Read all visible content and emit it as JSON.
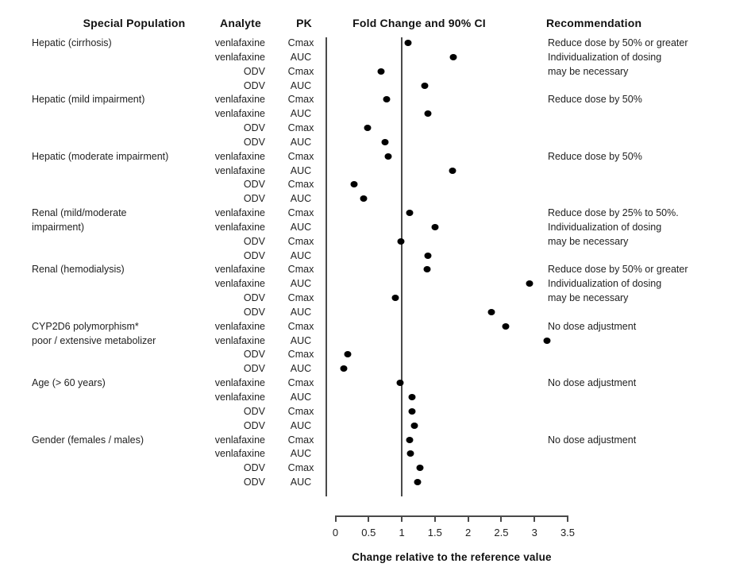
{
  "chart_data": {
    "type": "scatter",
    "subtype": "forest-dot-plot",
    "headers": [
      "Special Population",
      "Analyte",
      "PK",
      "Fold Change and 90% CI",
      "Recommendation"
    ],
    "xlabel": "Change relative to the reference value",
    "xlim": [
      0,
      3.5
    ],
    "x_ticks": [
      "0",
      "0.5",
      "1",
      "1.5",
      "2",
      "2.5",
      "3",
      "3.5"
    ],
    "x_tick_values": [
      0,
      0.5,
      1,
      1.5,
      2,
      2.5,
      3,
      3.5
    ],
    "reference_line_x": 1,
    "grid": false,
    "marker_color": "#000000",
    "line_color": "#4a4a4a",
    "rows": [
      {
        "population": "Hepatic (cirrhosis)",
        "analyte": "venlafaxine",
        "pk": "Cmax",
        "fold_change": 1.09,
        "recommendation": "Reduce dose by 50% or greater"
      },
      {
        "population": "",
        "analyte": "venlafaxine",
        "pk": "AUC",
        "fold_change": 1.78,
        "recommendation": "Individualization of dosing"
      },
      {
        "population": "",
        "analyte": "ODV",
        "pk": "Cmax",
        "fold_change": 0.69,
        "recommendation": "may be necessary"
      },
      {
        "population": "",
        "analyte": "ODV",
        "pk": "AUC",
        "fold_change": 1.35,
        "recommendation": ""
      },
      {
        "population": "Hepatic (mild impairment)",
        "analyte": "venlafaxine",
        "pk": "Cmax",
        "fold_change": 0.77,
        "recommendation": "Reduce dose by 50%"
      },
      {
        "population": "",
        "analyte": "venlafaxine",
        "pk": "AUC",
        "fold_change": 1.39,
        "recommendation": ""
      },
      {
        "population": "",
        "analyte": "ODV",
        "pk": "Cmax",
        "fold_change": 0.49,
        "recommendation": ""
      },
      {
        "population": "",
        "analyte": "ODV",
        "pk": "AUC",
        "fold_change": 0.75,
        "recommendation": ""
      },
      {
        "population": "Hepatic (moderate impairment)",
        "analyte": "venlafaxine",
        "pk": "Cmax",
        "fold_change": 0.79,
        "recommendation": "Reduce dose by 50%"
      },
      {
        "population": "",
        "analyte": "venlafaxine",
        "pk": "AUC",
        "fold_change": 1.76,
        "recommendation": ""
      },
      {
        "population": "",
        "analyte": "ODV",
        "pk": "Cmax",
        "fold_change": 0.28,
        "recommendation": ""
      },
      {
        "population": "",
        "analyte": "ODV",
        "pk": "AUC",
        "fold_change": 0.42,
        "recommendation": ""
      },
      {
        "population": "Renal (mild/moderate",
        "analyte": "venlafaxine",
        "pk": "Cmax",
        "fold_change": 1.12,
        "recommendation": "Reduce dose by 25% to 50%."
      },
      {
        "population": "impairment)",
        "analyte": "venlafaxine",
        "pk": "AUC",
        "fold_change": 1.5,
        "recommendation": "Individualization of dosing"
      },
      {
        "population": "",
        "analyte": "ODV",
        "pk": "Cmax",
        "fold_change": 0.99,
        "recommendation": "may be necessary"
      },
      {
        "population": "",
        "analyte": "ODV",
        "pk": "AUC",
        "fold_change": 1.39,
        "recommendation": ""
      },
      {
        "population": "Renal (hemodialysis)",
        "analyte": "venlafaxine",
        "pk": "Cmax",
        "fold_change": 1.38,
        "recommendation": "Reduce dose by 50% or greater"
      },
      {
        "population": "",
        "analyte": "venlafaxine",
        "pk": "AUC",
        "fold_change": 2.92,
        "recommendation": "Individualization of dosing"
      },
      {
        "population": "",
        "analyte": "ODV",
        "pk": "Cmax",
        "fold_change": 0.9,
        "recommendation": "may be necessary"
      },
      {
        "population": "",
        "analyte": "ODV",
        "pk": "AUC",
        "fold_change": 2.35,
        "recommendation": ""
      },
      {
        "population": "CYP2D6 polymorphism*",
        "analyte": "venlafaxine",
        "pk": "Cmax",
        "fold_change": 2.57,
        "recommendation": "No dose adjustment"
      },
      {
        "population": "poor / extensive metabolizer",
        "analyte": "venlafaxine",
        "pk": "AUC",
        "fold_change": 3.19,
        "recommendation": ""
      },
      {
        "population": "",
        "analyte": "ODV",
        "pk": "Cmax",
        "fold_change": 0.19,
        "recommendation": ""
      },
      {
        "population": "",
        "analyte": "ODV",
        "pk": "AUC",
        "fold_change": 0.13,
        "recommendation": ""
      },
      {
        "population": "Age (> 60 years)",
        "analyte": "venlafaxine",
        "pk": "Cmax",
        "fold_change": 0.97,
        "recommendation": "No dose adjustment"
      },
      {
        "population": "",
        "analyte": "venlafaxine",
        "pk": "AUC",
        "fold_change": 1.15,
        "recommendation": ""
      },
      {
        "population": "",
        "analyte": "ODV",
        "pk": "Cmax",
        "fold_change": 1.15,
        "recommendation": ""
      },
      {
        "population": "",
        "analyte": "ODV",
        "pk": "AUC",
        "fold_change": 1.19,
        "recommendation": ""
      },
      {
        "population": "Gender (females / males)",
        "analyte": "venlafaxine",
        "pk": "Cmax",
        "fold_change": 1.12,
        "recommendation": "No dose adjustment"
      },
      {
        "population": "",
        "analyte": "venlafaxine",
        "pk": "AUC",
        "fold_change": 1.13,
        "recommendation": ""
      },
      {
        "population": "",
        "analyte": "ODV",
        "pk": "Cmax",
        "fold_change": 1.27,
        "recommendation": ""
      },
      {
        "population": "",
        "analyte": "ODV",
        "pk": "AUC",
        "fold_change": 1.24,
        "recommendation": ""
      }
    ]
  }
}
